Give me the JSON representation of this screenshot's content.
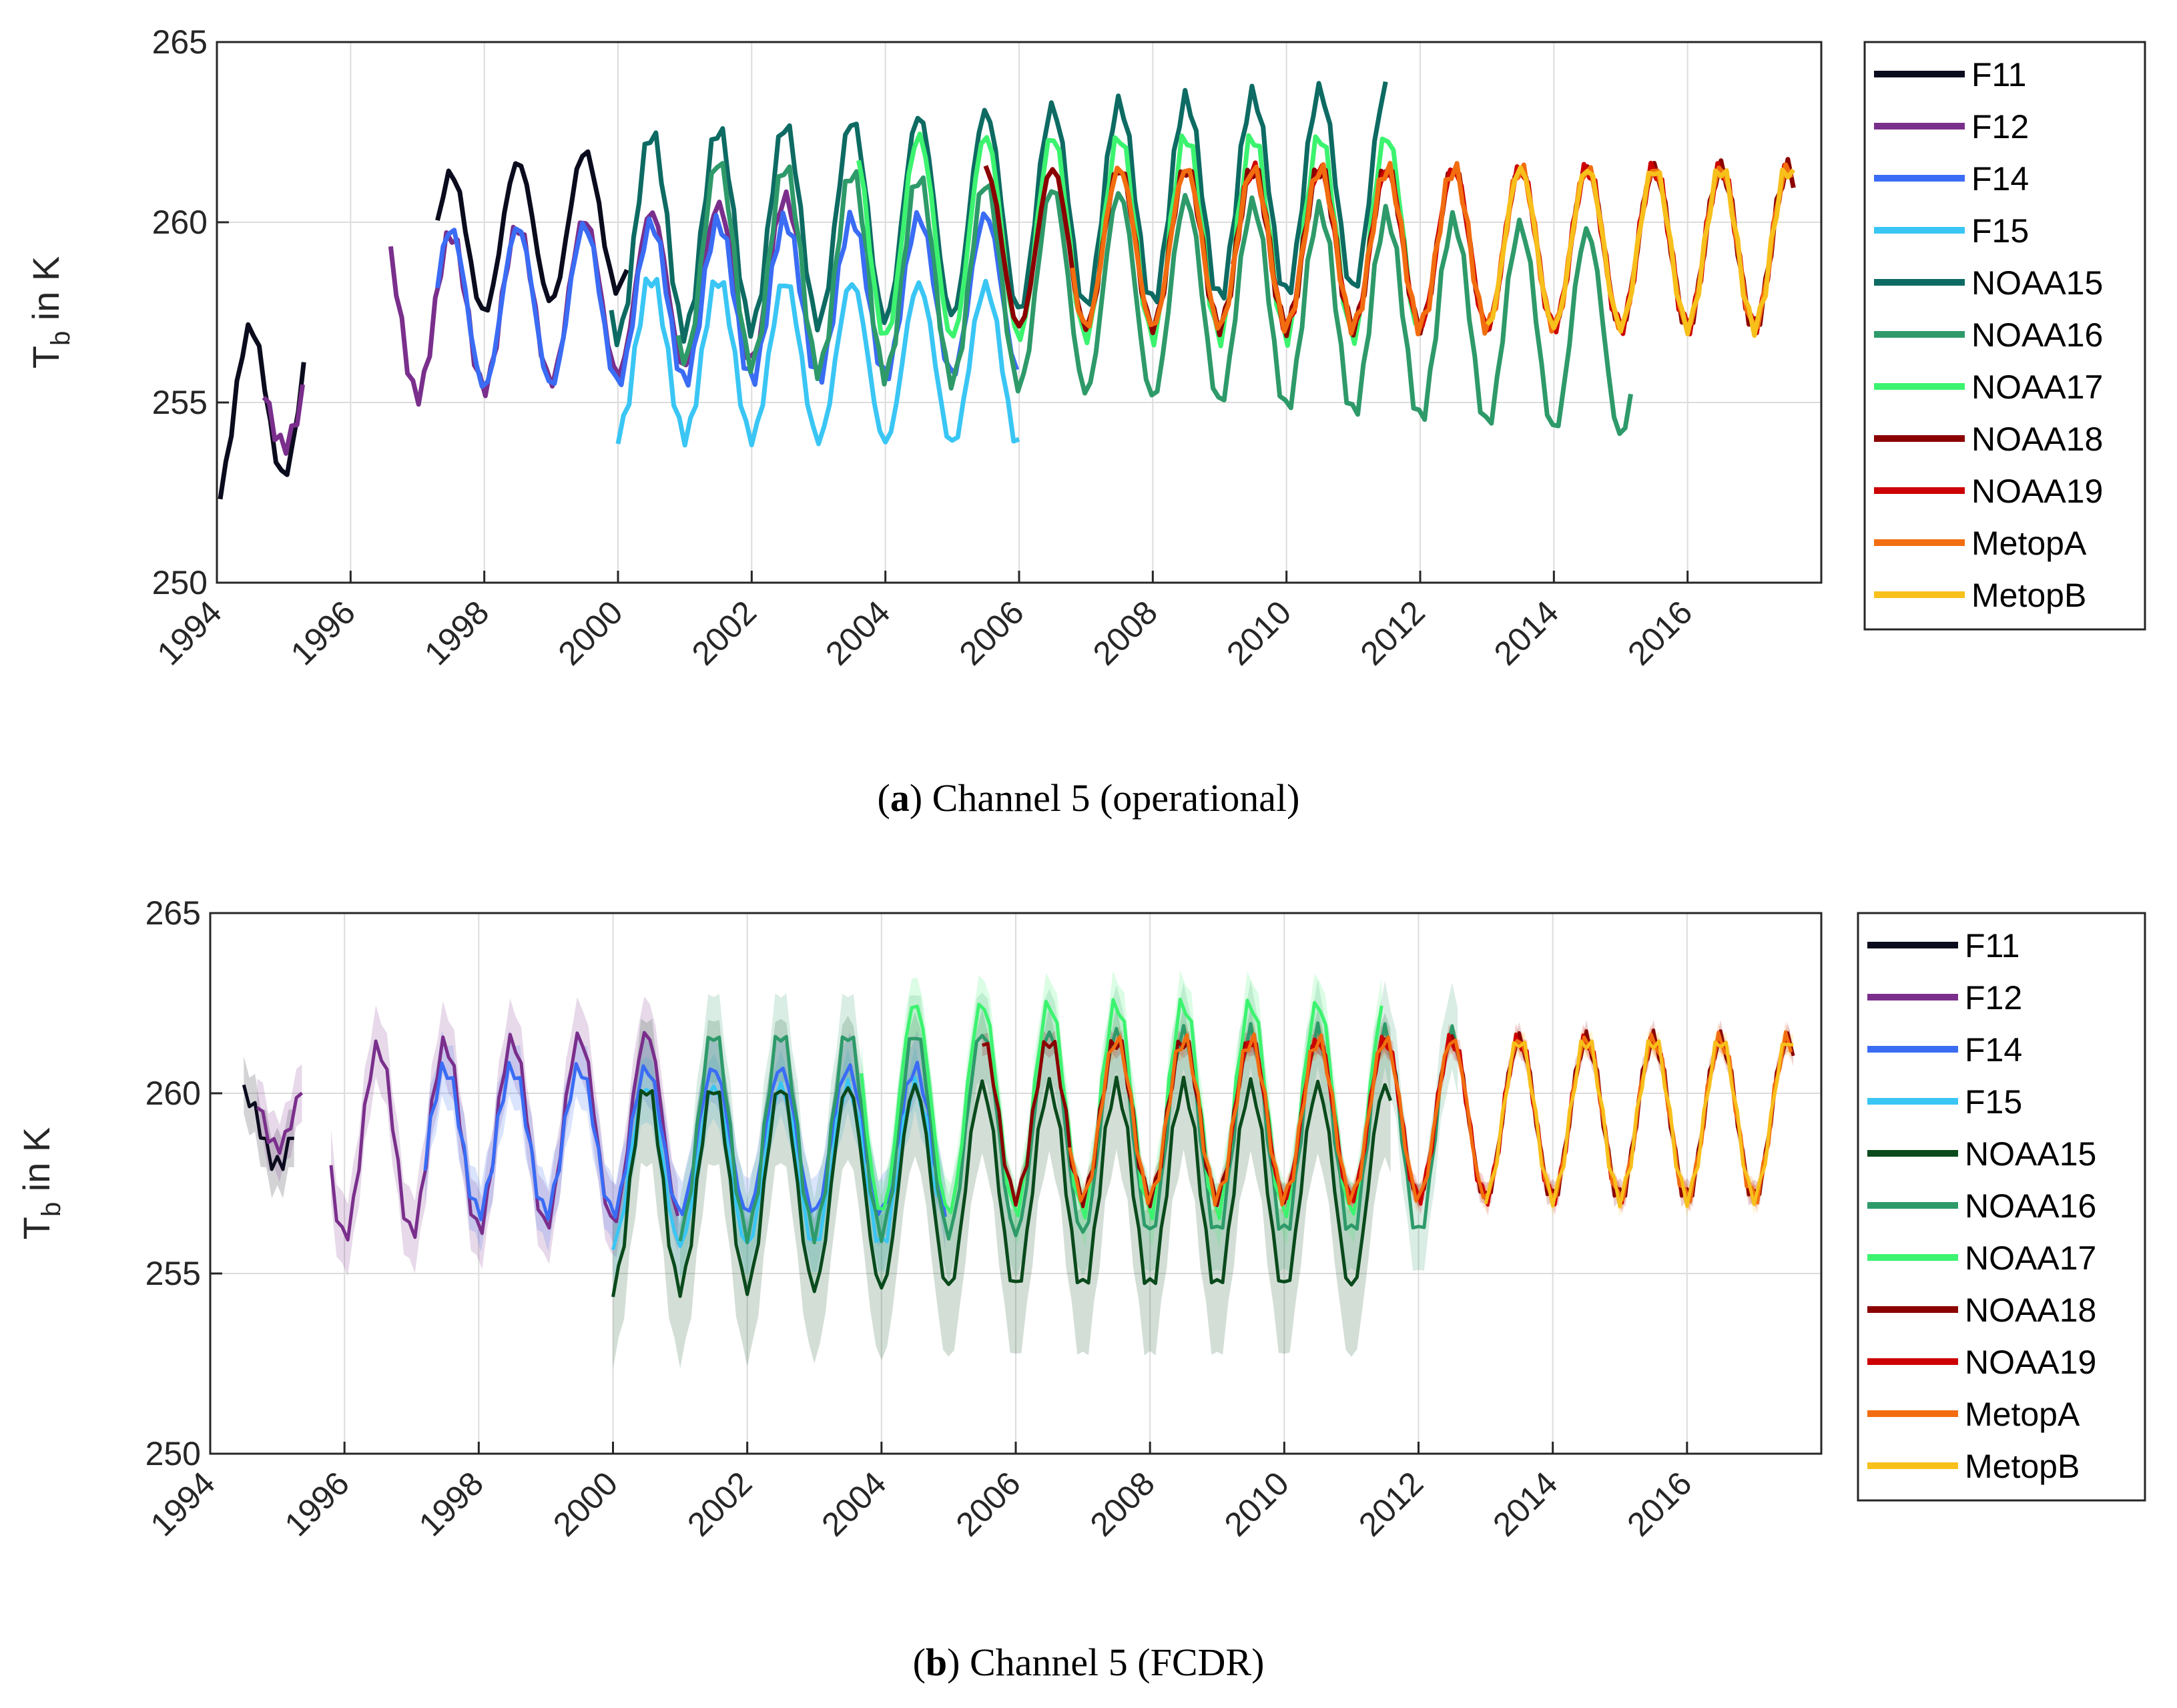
{
  "chart_data": [
    {
      "type": "line",
      "id": "a",
      "caption_letter": "a",
      "caption_text": "Channel 5 (operational)",
      "ylabel_main": "T",
      "ylabel_sub": "b",
      "ylabel_rest": " in K",
      "xlim": [
        1994.0,
        2018.0
      ],
      "ylim": [
        250,
        265
      ],
      "yticks": [
        "250",
        "255",
        "260",
        "265"
      ],
      "xticks": [
        "1994",
        "1996",
        "1998",
        "2000",
        "2002",
        "2004",
        "2006",
        "2008",
        "2010",
        "2012",
        "2014",
        "2016"
      ],
      "grid": true,
      "legend_position": "outside-right",
      "series": [
        {
          "name": "F11",
          "color": "#0b0b1e",
          "start": 1994.05,
          "end": 1995.3,
          "amp": 2.2,
          "mean": 254.6,
          "trend": 0.6,
          "band": 0
        },
        {
          "name": "F11",
          "color": "#0b0b1e",
          "start": 1997.3,
          "end": 2000.2,
          "amp": 2.0,
          "mean": 259.3,
          "trend": 0.3,
          "band": 0
        },
        {
          "name": "F12",
          "color": "#7a2f8c",
          "start": 1994.7,
          "end": 1995.3,
          "amp": 1.2,
          "mean": 255.0,
          "trend": 0,
          "band": 0
        },
        {
          "name": "F12",
          "color": "#7a2f8c",
          "start": 1996.6,
          "end": 2002.7,
          "amp": 2.2,
          "mean": 257.3,
          "trend": 0.2,
          "band": 0
        },
        {
          "name": "F14",
          "color": "#3a6cf4",
          "start": 1997.3,
          "end": 2006.0,
          "amp": 2.2,
          "mean": 257.6,
          "trend": 0.05,
          "band": 0
        },
        {
          "name": "F15",
          "color": "#3ac6f4",
          "start": 2000.0,
          "end": 2006.0,
          "amp": 2.2,
          "mean": 256.3,
          "trend": -0.05,
          "band": 0
        },
        {
          "name": "NOAA15",
          "color": "#0d6b63",
          "start": 1999.9,
          "end": 2011.5,
          "amp": 2.8,
          "mean": 259.6,
          "trend": 0.12,
          "band": 0
        },
        {
          "name": "NOAA16",
          "color": "#2e9a6a",
          "start": 2000.9,
          "end": 2015.2,
          "amp": 2.8,
          "mean": 259.0,
          "trend": -0.15,
          "band": 0
        },
        {
          "name": "NOAA17",
          "color": "#3cf36f",
          "start": 2003.6,
          "end": 2012.0,
          "amp": 2.8,
          "mean": 259.6,
          "trend": 0,
          "band": 0
        },
        {
          "name": "NOAA18",
          "color": "#8b0000",
          "start": 2005.5,
          "end": 2017.6,
          "amp": 2.2,
          "mean": 259.3,
          "trend": 0,
          "band": 0
        },
        {
          "name": "NOAA19",
          "color": "#cc0000",
          "start": 2009.2,
          "end": 2017.6,
          "amp": 2.2,
          "mean": 259.3,
          "trend": 0,
          "band": 0
        },
        {
          "name": "MetopA",
          "color": "#f26d0f",
          "start": 2006.8,
          "end": 2017.6,
          "amp": 2.2,
          "mean": 259.3,
          "trend": 0,
          "band": 0
        },
        {
          "name": "MetopB",
          "color": "#f7c01b",
          "start": 2013.0,
          "end": 2017.6,
          "amp": 2.2,
          "mean": 259.3,
          "trend": 0,
          "band": 0
        }
      ],
      "legend": [
        "F11",
        "F12",
        "F14",
        "F15",
        "NOAA15",
        "NOAA16",
        "NOAA17",
        "NOAA18",
        "NOAA19",
        "MetopA",
        "MetopB"
      ]
    },
    {
      "type": "line",
      "id": "b",
      "caption_letter": "b",
      "caption_text": "Channel 5 (FCDR)",
      "ylabel_main": "T",
      "ylabel_sub": "b",
      "ylabel_rest": " in K",
      "xlim": [
        1994.0,
        2018.0
      ],
      "ylim": [
        250,
        265
      ],
      "yticks": [
        "250",
        "255",
        "260",
        "265"
      ],
      "xticks": [
        "1994",
        "1996",
        "1998",
        "2000",
        "2002",
        "2004",
        "2006",
        "2008",
        "2010",
        "2012",
        "2014",
        "2016"
      ],
      "grid": true,
      "legend_position": "outside-right",
      "series": [
        {
          "name": "F11",
          "color": "#0b0b1e",
          "start": 1994.5,
          "end": 1995.3,
          "amp": 1.0,
          "mean": 259.0,
          "trend": 0,
          "band": 0.8
        },
        {
          "name": "F12",
          "color": "#7a2f8c",
          "start": 1994.7,
          "end": 1995.4,
          "amp": 1.0,
          "mean": 259.5,
          "trend": 0,
          "band": 0.8
        },
        {
          "name": "F12",
          "color": "#7a2f8c",
          "start": 1995.8,
          "end": 2001.0,
          "amp": 2.6,
          "mean": 258.6,
          "trend": 0.1,
          "band": 1.0
        },
        {
          "name": "F14",
          "color": "#3a6cf4",
          "start": 1997.2,
          "end": 2005.0,
          "amp": 2.0,
          "mean": 258.7,
          "trend": 0,
          "band": 0.9
        },
        {
          "name": "F15",
          "color": "#3ac6f4",
          "start": 2000.0,
          "end": 2004.9,
          "amp": 2.2,
          "mean": 258.0,
          "trend": 0,
          "band": 0.9
        },
        {
          "name": "NOAA15",
          "color": "#0a4a1c",
          "start": 2000.0,
          "end": 2011.6,
          "amp": 2.8,
          "mean": 257.4,
          "trend": 0,
          "band": 2.0
        },
        {
          "name": "NOAA16",
          "color": "#2e9a6a",
          "start": 2001.0,
          "end": 2012.6,
          "amp": 2.8,
          "mean": 258.9,
          "trend": 0,
          "band": 1.2
        },
        {
          "name": "NOAA17",
          "color": "#3cf36f",
          "start": 2003.7,
          "end": 2011.5,
          "amp": 2.9,
          "mean": 259.6,
          "trend": 0,
          "band": 0.8
        },
        {
          "name": "NOAA18",
          "color": "#8b0000",
          "start": 2005.5,
          "end": 2017.6,
          "amp": 2.2,
          "mean": 259.3,
          "trend": 0,
          "band": 0.3
        },
        {
          "name": "NOAA19",
          "color": "#cc0000",
          "start": 2009.2,
          "end": 2017.6,
          "amp": 2.2,
          "mean": 259.3,
          "trend": 0,
          "band": 0.3
        },
        {
          "name": "MetopA",
          "color": "#f26d0f",
          "start": 2006.8,
          "end": 2017.6,
          "amp": 2.2,
          "mean": 259.3,
          "trend": 0,
          "band": 0.3
        },
        {
          "name": "MetopB",
          "color": "#f7c01b",
          "start": 2013.0,
          "end": 2017.6,
          "amp": 2.2,
          "mean": 259.3,
          "trend": 0,
          "band": 0.3
        }
      ],
      "legend": [
        "F11",
        "F12",
        "F14",
        "F15",
        "NOAA15",
        "NOAA16",
        "NOAA17",
        "NOAA18",
        "NOAA19",
        "MetopA",
        "MetopB"
      ]
    }
  ],
  "legend_colors": {
    "a": [
      "#0b0b1e",
      "#7a2f8c",
      "#3a6cf4",
      "#3ac6f4",
      "#0d6b63",
      "#2e9a6a",
      "#3cf36f",
      "#8b0000",
      "#cc0000",
      "#f26d0f",
      "#f7c01b"
    ],
    "b": [
      "#0b0b1e",
      "#7a2f8c",
      "#3a6cf4",
      "#3ac6f4",
      "#0a4a1c",
      "#2e9a6a",
      "#3cf36f",
      "#8b0000",
      "#cc0000",
      "#f26d0f",
      "#f7c01b"
    ]
  }
}
